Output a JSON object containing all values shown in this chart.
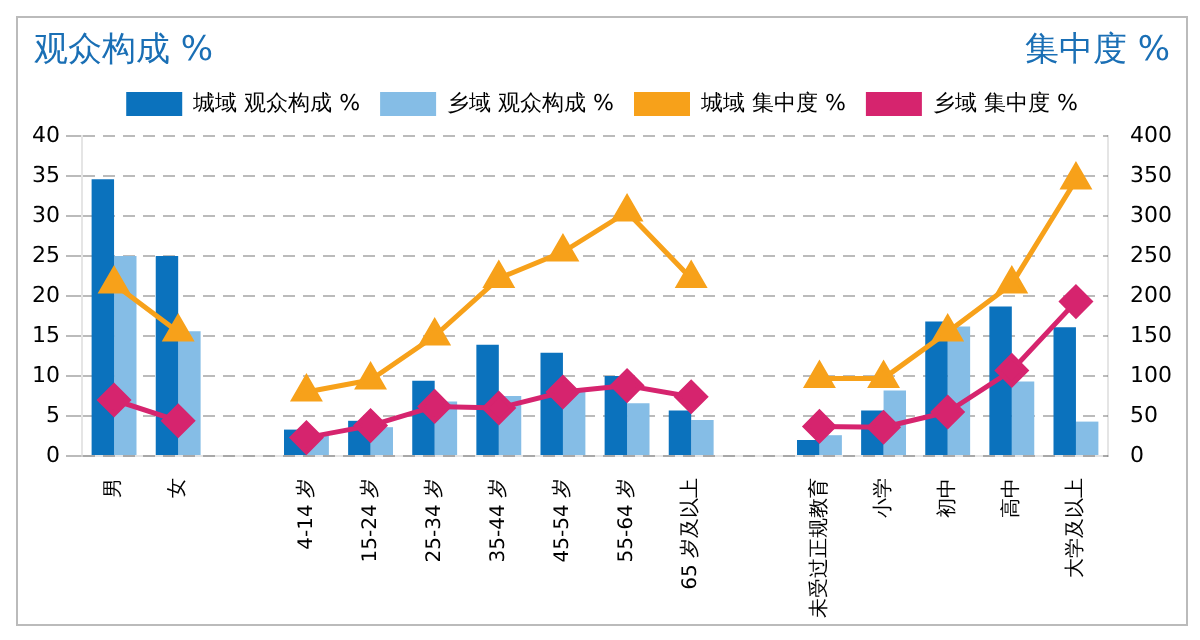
{
  "chart_data": {
    "type": "bar",
    "ylabel": "观众构成 %",
    "y2label": "集中度 %",
    "categories": [
      "男",
      "女",
      null,
      "4-14 岁",
      "15-24 岁",
      "25-34 岁",
      "35-44 岁",
      "45-54 岁",
      "55-64 岁",
      "65 岁及以上",
      null,
      "未受过正规教育",
      "小学",
      "初中",
      "高中",
      "大学及以上"
    ],
    "series": [
      {
        "name": "城域 观众构成 %",
        "color": "#0b72bd",
        "values": [
          34.6,
          25,
          null,
          3.3,
          4.4,
          9.4,
          13.9,
          12.9,
          10,
          5.7,
          null,
          2,
          5.7,
          16.8,
          18.7,
          16.1
        ]
      },
      {
        "name": "乡域 观众构成 %",
        "color": "#85bde6",
        "values": [
          25,
          15.6,
          null,
          2.5,
          3.6,
          6.8,
          7.5,
          8.3,
          6.6,
          4.5,
          null,
          2.6,
          8.2,
          16.2,
          9.3,
          4.3
        ]
      },
      {
        "name": "城域 集中度 %",
        "type": "line",
        "axis": "y2",
        "marker": "triangle",
        "color": "#f7a11a",
        "values": [
          215,
          155,
          null,
          80,
          95,
          150,
          222,
          255,
          305,
          222,
          null,
          97,
          97,
          155,
          215,
          345
        ]
      },
      {
        "name": "乡域 集中度 %",
        "type": "line",
        "axis": "y2",
        "marker": "diamond",
        "color": "#d6246e",
        "values": [
          70,
          44,
          null,
          23,
          38,
          62,
          60,
          80,
          88,
          74,
          null,
          37,
          36,
          55,
          107,
          193
        ]
      }
    ],
    "ylim": [
      0,
      40
    ],
    "yticks": [
      0,
      5,
      10,
      15,
      20,
      25,
      30,
      35,
      40
    ],
    "y2lim": [
      0,
      400
    ],
    "y2ticks": [
      0,
      50,
      100,
      150,
      200,
      250,
      300,
      350,
      400
    ],
    "grid": "y",
    "legend": "top"
  }
}
